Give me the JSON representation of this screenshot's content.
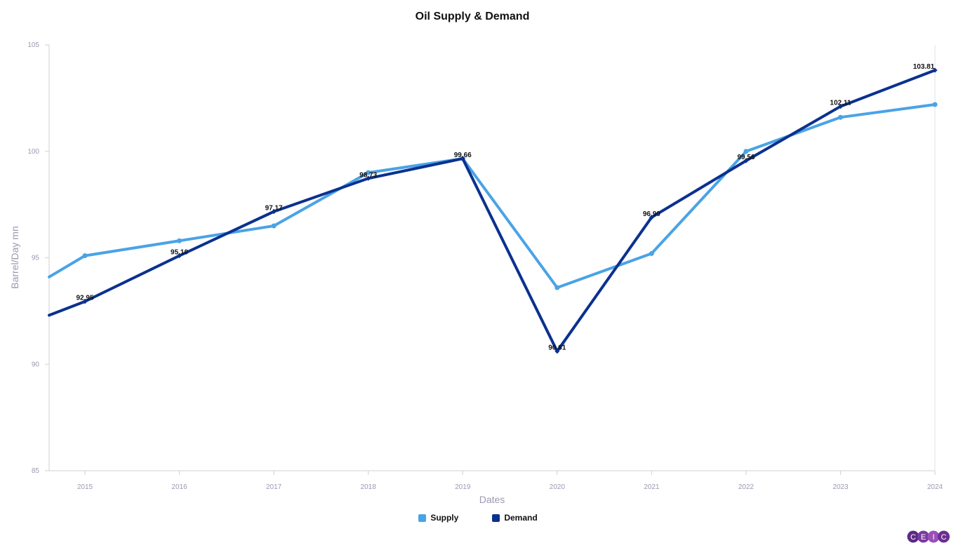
{
  "chart_data": {
    "type": "line",
    "title": "Oil Supply & Demand",
    "xlabel": "Dates",
    "ylabel": "Barrel/Day mn",
    "ylim": [
      85,
      105
    ],
    "yticks": [
      85,
      90,
      95,
      100,
      105
    ],
    "categories": [
      "2015",
      "2016",
      "2017",
      "2018",
      "2019",
      "2020",
      "2021",
      "2022",
      "2023",
      "2024"
    ],
    "grid": false,
    "legend_position": "bottom-center",
    "series": [
      {
        "name": "Supply",
        "color": "#4aa3e6",
        "values": [
          95.1,
          95.8,
          96.5,
          99.0,
          99.66,
          93.6,
          95.2,
          100.0,
          101.6,
          102.2
        ],
        "left_edge_value": 94.1
      },
      {
        "name": "Demand",
        "color": "#0b318f",
        "values": [
          92.95,
          95.1,
          97.17,
          98.73,
          99.66,
          90.61,
          96.9,
          99.56,
          102.11,
          103.81
        ],
        "left_edge_value": 92.3,
        "data_labels": [
          "92.95",
          "95.10",
          "97.17",
          "98.73",
          "99.66",
          "90.61",
          "96.90",
          "99.56",
          "102.11",
          "103.81"
        ]
      }
    ]
  },
  "logo": {
    "letters": [
      "C",
      "E",
      "I",
      "C"
    ],
    "colors": [
      "#5b2a86",
      "#7a3aa0",
      "#9b4fb9",
      "#6a2f93"
    ]
  }
}
